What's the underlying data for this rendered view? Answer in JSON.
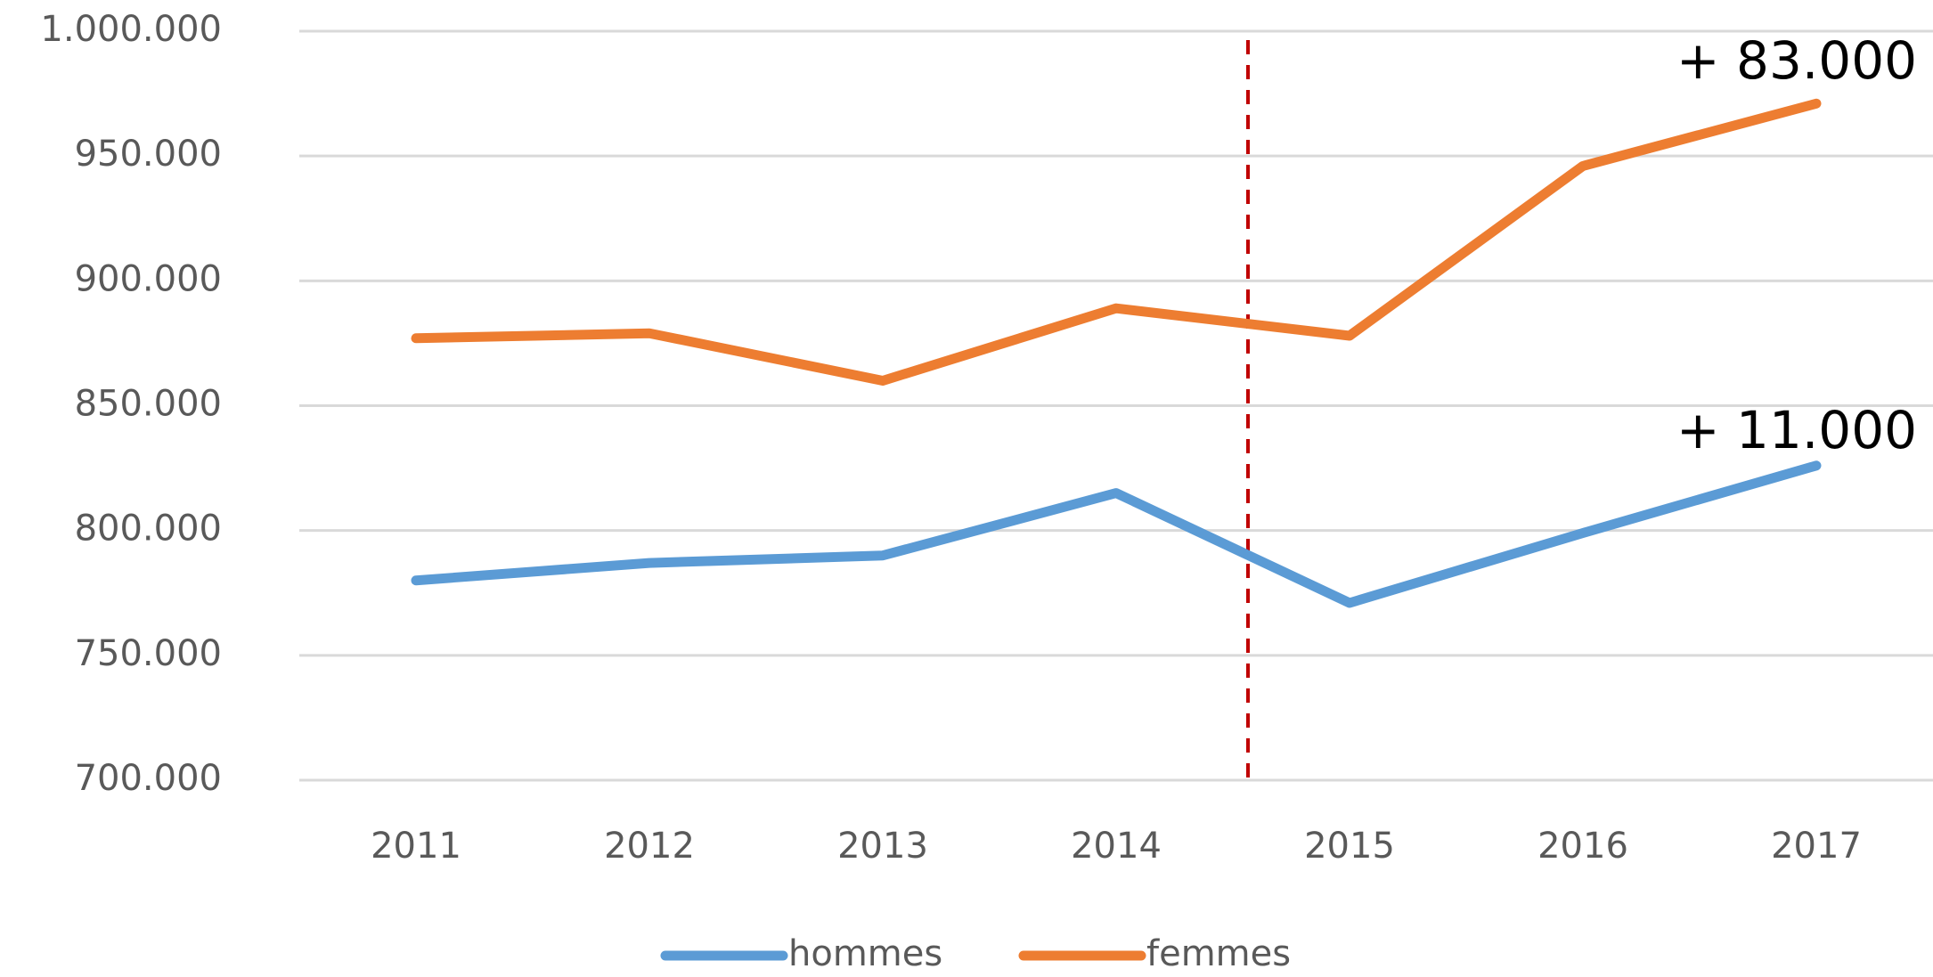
{
  "chart_data": {
    "type": "line",
    "categories": [
      "2011",
      "2012",
      "2013",
      "2014",
      "2015",
      "2016",
      "2017"
    ],
    "series": [
      {
        "name": "hommes",
        "color": "#5b9bd5",
        "values": [
          780000,
          787000,
          790000,
          815000,
          771000,
          799000,
          826000
        ]
      },
      {
        "name": "femmes",
        "color": "#ed7d31",
        "values": [
          877000,
          879000,
          860000,
          889000,
          878000,
          946000,
          971000
        ]
      }
    ],
    "ylim": [
      700000,
      1000000
    ],
    "yticks": [
      {
        "value": 700000,
        "label": "700.000"
      },
      {
        "value": 750000,
        "label": "750.000"
      },
      {
        "value": 800000,
        "label": "800.000"
      },
      {
        "value": 850000,
        "label": "850.000"
      },
      {
        "value": 900000,
        "label": "900.000"
      },
      {
        "value": 950000,
        "label": "950.000"
      },
      {
        "value": 1000000,
        "label": "1.000.000"
      }
    ],
    "grid": true,
    "legend": "bottom",
    "annotations": [
      "+ 83.000",
      "+ 11.000"
    ]
  }
}
